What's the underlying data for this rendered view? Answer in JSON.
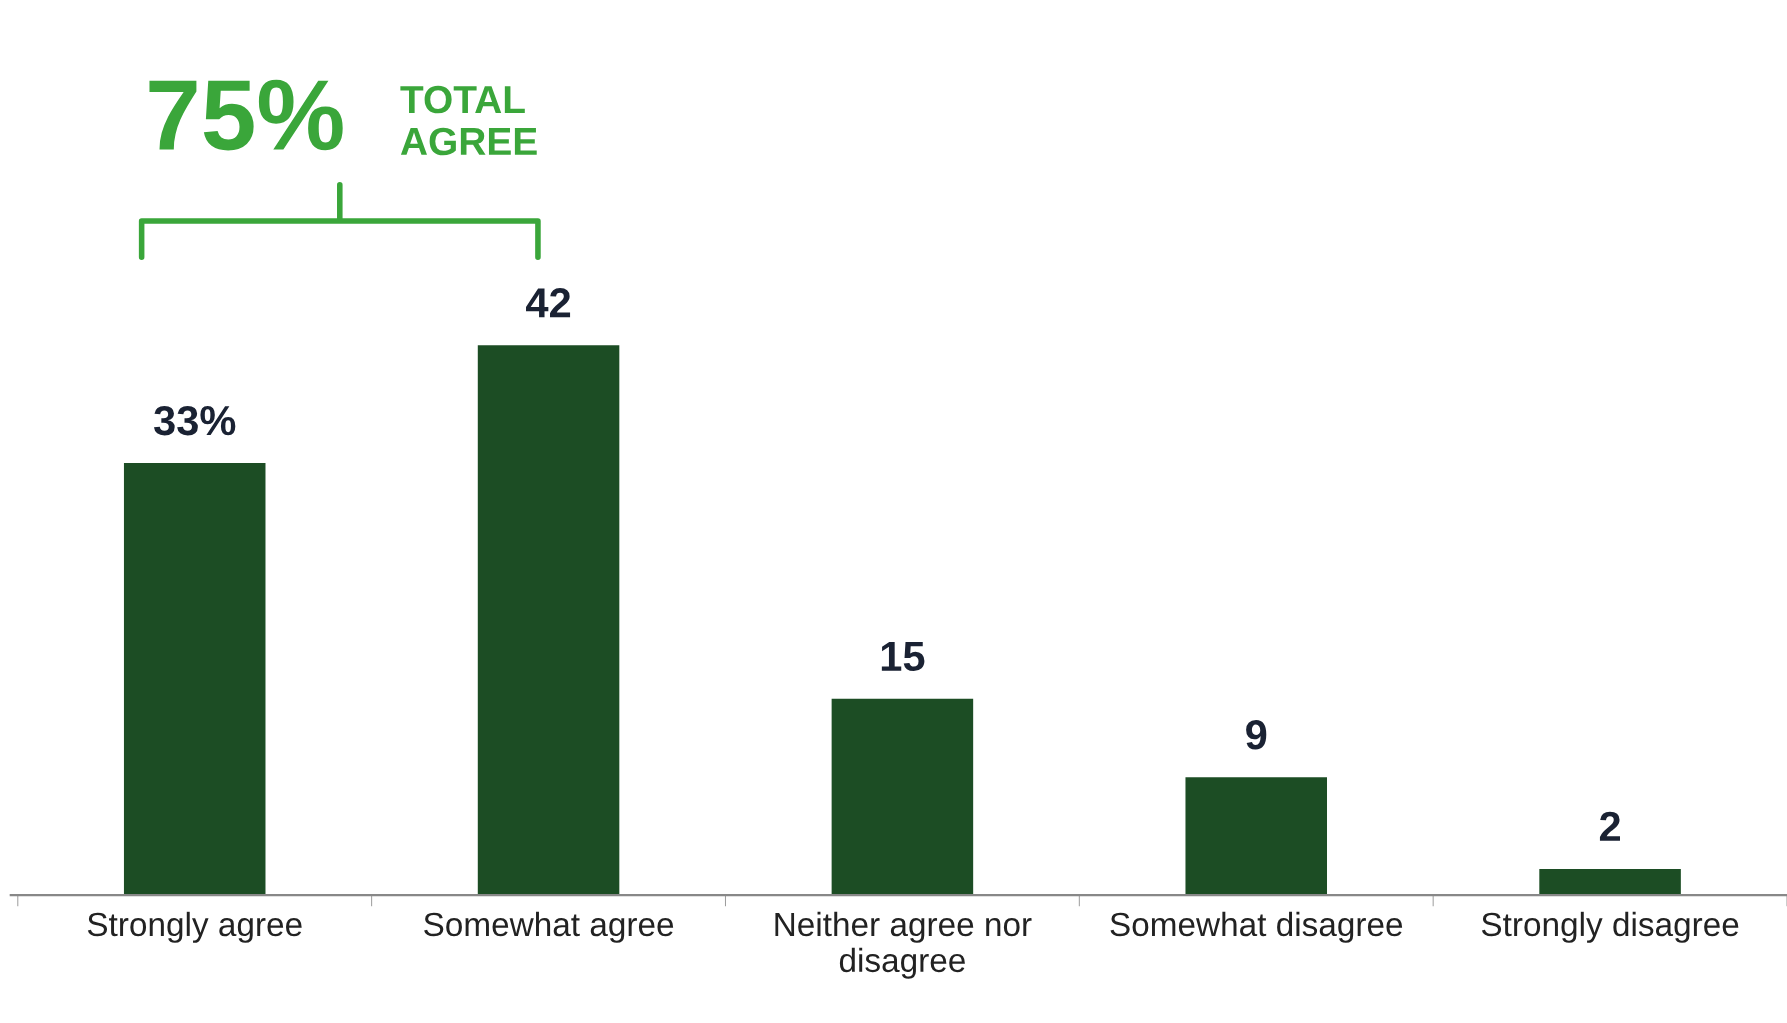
{
  "chart_data": {
    "type": "bar",
    "categories": [
      "Strongly agree",
      "Somewhat agree",
      "Neither agree nor\ndisagree",
      "Somewhat disagree",
      "Strongly disagree"
    ],
    "values": [
      33,
      42,
      15,
      9,
      2
    ],
    "value_labels": [
      "33%",
      "42",
      "15",
      "9",
      "2"
    ],
    "color": "#1c4d24",
    "annotations": [
      "75%",
      "TOTAL\nAGREE"
    ],
    "grid": false,
    "legend": false
  }
}
